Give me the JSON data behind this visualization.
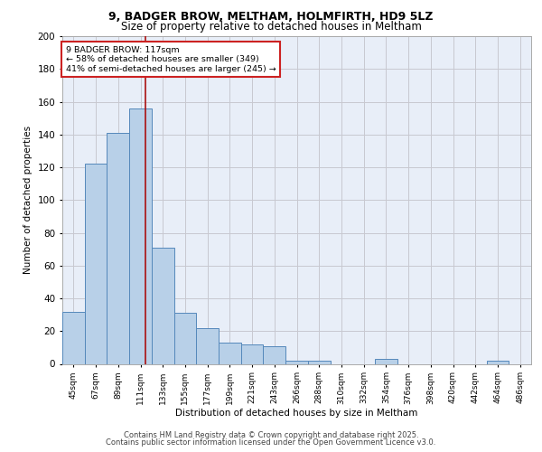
{
  "title_line1": "9, BADGER BROW, MELTHAM, HOLMFIRTH, HD9 5LZ",
  "title_line2": "Size of property relative to detached houses in Meltham",
  "xlabel": "Distribution of detached houses by size in Meltham",
  "ylabel": "Number of detached properties",
  "categories": [
    "45sqm",
    "67sqm",
    "89sqm",
    "111sqm",
    "133sqm",
    "155sqm",
    "177sqm",
    "199sqm",
    "221sqm",
    "243sqm",
    "266sqm",
    "288sqm",
    "310sqm",
    "332sqm",
    "354sqm",
    "376sqm",
    "398sqm",
    "420sqm",
    "442sqm",
    "464sqm",
    "486sqm"
  ],
  "values": [
    32,
    122,
    141,
    156,
    71,
    31,
    22,
    13,
    12,
    11,
    2,
    2,
    0,
    0,
    3,
    0,
    0,
    0,
    0,
    2,
    0
  ],
  "bar_color": "#b8d0e8",
  "bar_edge_color": "#5588bb",
  "background_color": "#e8eef8",
  "grid_color": "#c8c8d0",
  "annotation_text": "9 BADGER BROW: 117sqm\n← 58% of detached houses are smaller (349)\n41% of semi-detached houses are larger (245) →",
  "annotation_box_color": "#ffffff",
  "annotation_box_edge": "#cc2222",
  "vline_color": "#aa1111",
  "vline_pos": 3.22,
  "ylim": [
    0,
    200
  ],
  "yticks": [
    0,
    20,
    40,
    60,
    80,
    100,
    120,
    140,
    160,
    180,
    200
  ],
  "footer_line1": "Contains HM Land Registry data © Crown copyright and database right 2025.",
  "footer_line2": "Contains public sector information licensed under the Open Government Licence v3.0."
}
